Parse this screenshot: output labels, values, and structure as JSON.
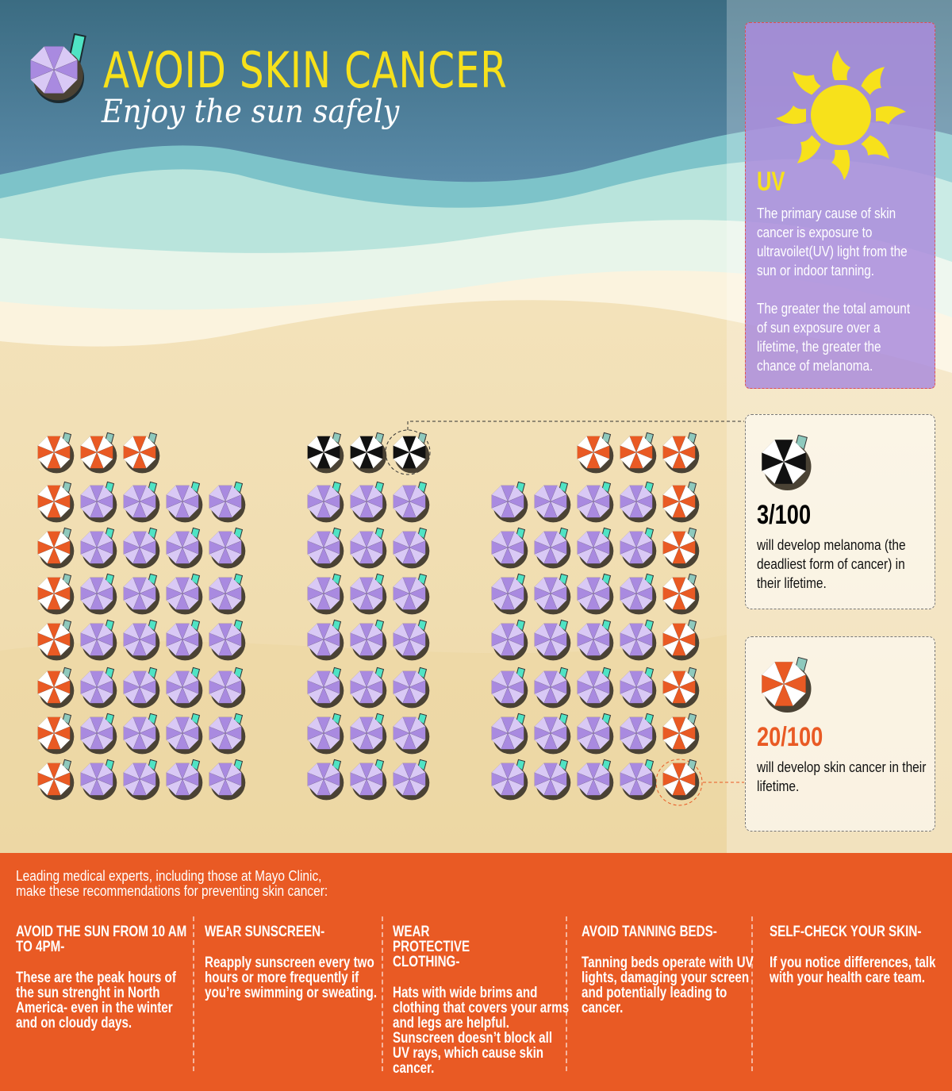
{
  "header": {
    "title": "AVOID SKIN CANCER",
    "subtitle": "Enjoy the sun safely"
  },
  "uv_panel": {
    "label": "UV",
    "text": "The primary cause of  skin cancer is exposure to ultravoilet(UV) light from the sun or indoor tanning.\n\nThe greater the total amount of sun exposure over a lifetime, the greater the chance of melanoma."
  },
  "melanoma_card": {
    "stat": "3/100",
    "text": "will develop melanoma (the deadliest form of cancer) in their lifetime.",
    "color": "#111111"
  },
  "skin_cancer_card": {
    "stat": "20/100",
    "text": "will develop skin cancer in their lifetime.",
    "color": "#e95a24"
  },
  "umbrella_colors": {
    "purple": "#a98ae0",
    "orange": "#e95a24",
    "black": "#111111"
  },
  "umbrella_grid": [
    {
      "top_row": [
        "orange",
        "orange",
        "orange"
      ],
      "top_row_align": "left",
      "rows": 7,
      "row_pattern": [
        "orange",
        "purple",
        "purple",
        "purple",
        "purple"
      ]
    },
    {
      "top_row": [
        "black",
        "black",
        "black"
      ],
      "top_row_align": "left",
      "rows": 7,
      "row_pattern": [
        "purple",
        "purple",
        "purple"
      ]
    },
    {
      "top_row": [
        "orange",
        "orange",
        "orange"
      ],
      "top_row_align": "right",
      "rows": 7,
      "row_pattern": [
        "purple",
        "purple",
        "purple",
        "purple",
        "orange"
      ]
    }
  ],
  "footer": {
    "intro": "Leading medical experts, including those at Mayo Clinic,\nmake these recommendations for preventing skin cancer:",
    "tips": [
      {
        "title": "AVOID THE SUN FROM 10 AM TO 4PM-",
        "text": "These are the peak hours of the sun strenght in North America- even in the winter and on cloudy days."
      },
      {
        "title": "WEAR SUNSCREEN-",
        "text": "Reapply sunscreen every two hours or more frequently if you’re swimming or sweating."
      },
      {
        "title": "WEAR PROTECTIVE CLOTHING-",
        "text": "Hats with wide brims and clothing that covers your arms and legs are helpful. Sunscreen doesn’t block all UV rays, which cause skin cancer."
      },
      {
        "title": "AVOID TANNING BEDS-",
        "text": "Tanning beds operate with UV lights, damaging your screen and potentially leading to cancer."
      },
      {
        "title": "SELF-CHECK YOUR SKIN-",
        "text": "If you notice differences, talk with your health care team."
      }
    ]
  }
}
